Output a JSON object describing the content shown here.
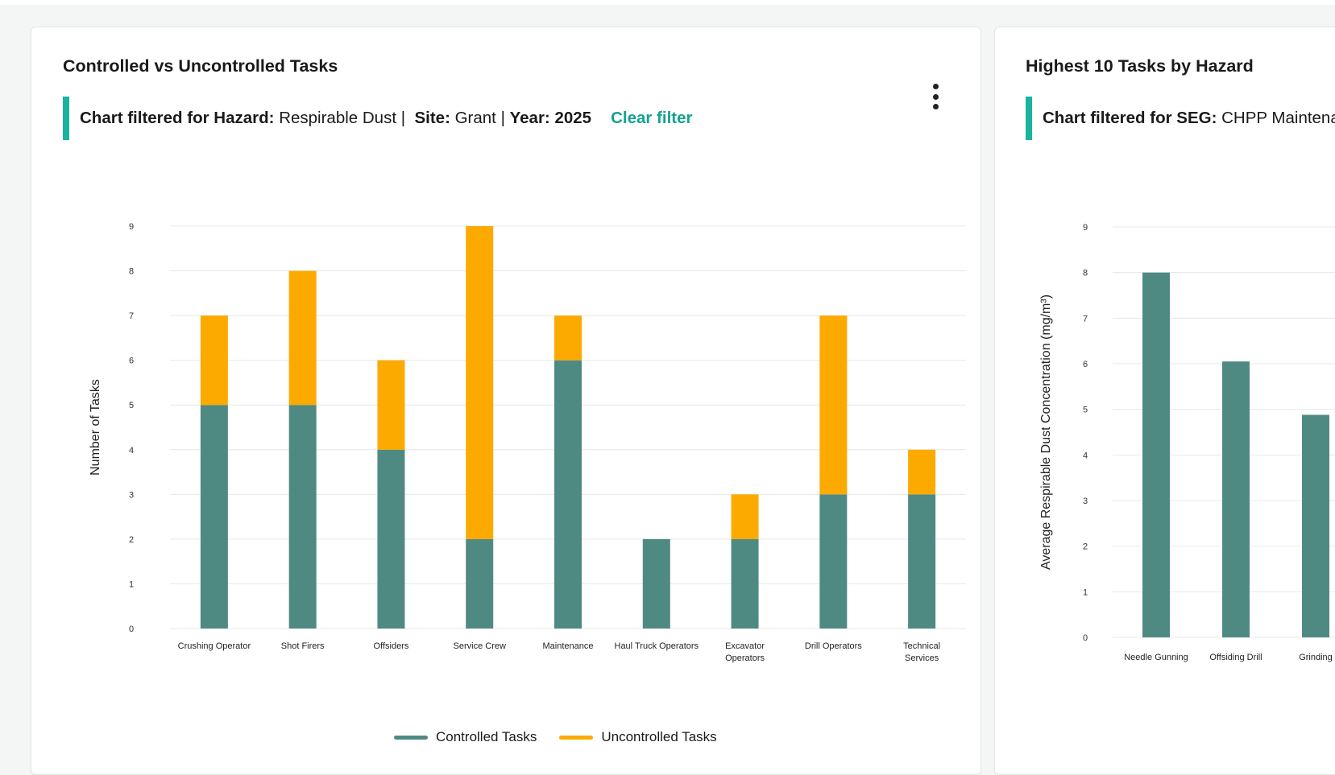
{
  "card1": {
    "title": "Controlled vs Uncontrolled Tasks",
    "filter": {
      "hazard_label": "Chart filtered for Hazard:",
      "hazard_value": "Respirable Dust |",
      "site_label": "Site:",
      "site_value": "Grant |",
      "year_label": "Year:",
      "year_value": "2025",
      "clear_label": "Clear filter"
    },
    "menu_icon": "kebab-menu-icon"
  },
  "card2": {
    "title": "Highest 10 Tasks by Hazard",
    "filter": {
      "seg_label": "Chart filtered for SEG:",
      "seg_value": "CHPP Maintena"
    }
  },
  "chart_data": [
    {
      "type": "bar",
      "stacked": true,
      "categories": [
        "Crushing Operator",
        "Shot Firers",
        "Offsiders",
        "Service Crew",
        "Maintenance",
        "Haul Truck Operators",
        "Excavator Operators",
        "Drill Operators",
        "Technical Services"
      ],
      "category_lines": [
        [
          "Crushing Operator"
        ],
        [
          "Shot Firers"
        ],
        [
          "Offsiders"
        ],
        [
          "Service Crew"
        ],
        [
          "Maintenance"
        ],
        [
          "Haul Truck Operators"
        ],
        [
          "Excavator",
          "Operators"
        ],
        [
          "Drill Operators"
        ],
        [
          "Technical",
          "Services"
        ]
      ],
      "series": [
        {
          "name": "Controlled Tasks",
          "color": "#4f8a82",
          "values": [
            5,
            5,
            4,
            2,
            6,
            2,
            2,
            3,
            3
          ]
        },
        {
          "name": "Uncontrolled Tasks",
          "color": "#fcaa00",
          "values": [
            2,
            3,
            2,
            7,
            1,
            0,
            1,
            4,
            1
          ]
        }
      ],
      "xlabel": "",
      "ylabel": "Number of Tasks",
      "ylim": [
        0,
        9
      ],
      "yticks": [
        0,
        1,
        2,
        3,
        4,
        5,
        6,
        7,
        8,
        9
      ],
      "grid": true,
      "legend": "bottom-center"
    },
    {
      "type": "bar",
      "categories": [
        "Needle Gunning",
        "Offsiding Drill",
        "Grinding"
      ],
      "series": [
        {
          "color": "#4f8a82",
          "values": [
            8.0,
            6.05,
            4.88
          ]
        }
      ],
      "xlabel": "",
      "ylabel": "Average Respirable  Dust Concentration (mg/m³)",
      "ylim": [
        0,
        9
      ],
      "yticks": [
        0,
        1,
        2,
        3,
        4,
        5,
        6,
        7,
        8,
        9
      ],
      "grid": true
    }
  ]
}
